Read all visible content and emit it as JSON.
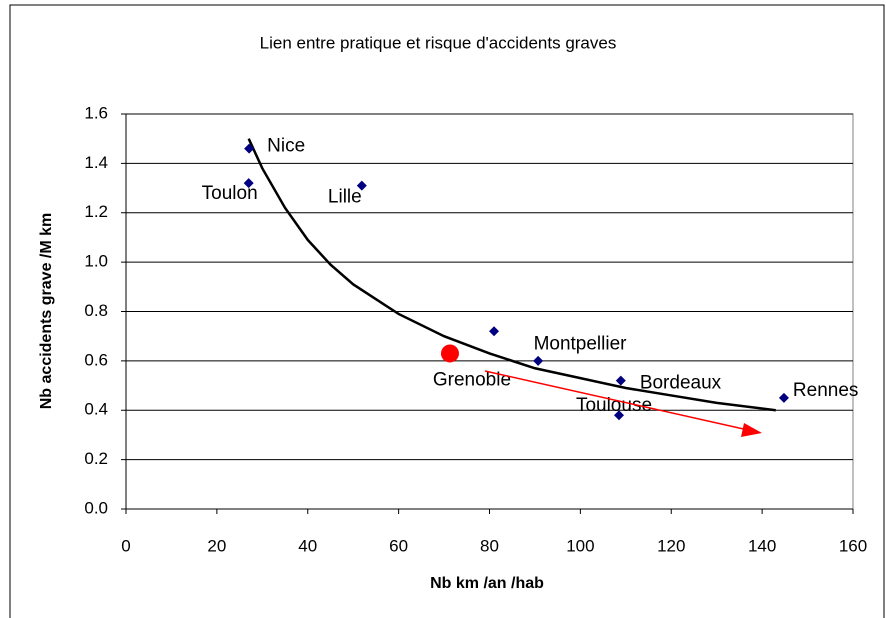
{
  "chart_data": {
    "type": "scatter",
    "title": "Lien entre pratique et risque d'accidents graves",
    "x_label": "Nb km /an /hab",
    "y_label": "Nb accidents grave /M km",
    "xlim": [
      0,
      160
    ],
    "xticks": [
      0,
      20,
      40,
      60,
      80,
      100,
      120,
      140,
      160
    ],
    "ylim": [
      0,
      1.6
    ],
    "yticks": [
      {
        "value": 0,
        "label": "0.0"
      },
      0.2,
      0.4,
      0.6,
      0.8,
      {
        "value": 1,
        "label": "1.0"
      },
      1.2,
      1.4,
      1.6
    ],
    "grid": true,
    "points": {
      "color": "#000080",
      "x": [
        27.1,
        27,
        51.9,
        81,
        90.7,
        108.9,
        108.5,
        144.8
      ],
      "values": [
        1.46,
        1.32,
        1.31,
        0.72,
        0.6,
        0.52,
        0.38,
        0.45
      ],
      "labels": [
        "Nice",
        "Toulon",
        "Lille",
        "Montpellier",
        null,
        "Bordeaux",
        "Toulouse",
        "Rennes"
      ]
    },
    "highlight": {
      "color": "#ff0000",
      "x": 71.3,
      "value": 0.63,
      "label": "Grenoble"
    },
    "trend": {
      "color": "#000000",
      "x": [
        27,
        30,
        35,
        40,
        45,
        50,
        60,
        70,
        80,
        90,
        100,
        110,
        120,
        130,
        143
      ],
      "values": [
        1.5,
        1.38,
        1.22,
        1.09,
        0.99,
        0.91,
        0.79,
        0.7,
        0.63,
        0.57,
        0.53,
        0.49,
        0.46,
        0.43,
        0.4
      ]
    }
  }
}
